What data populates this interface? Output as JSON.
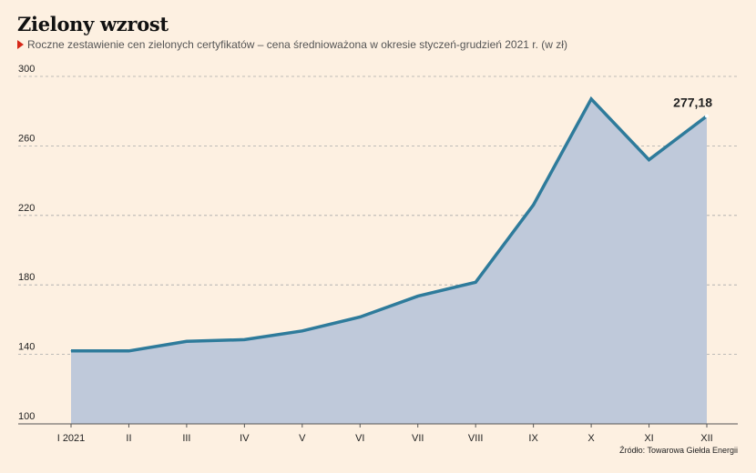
{
  "header": {
    "title": "Zielony wzrost",
    "subtitle": "Roczne zestawienie cen zielonych certyfikatów – cena średnioważona w okresie styczeń-grudzień 2021 r. (w zł)"
  },
  "source": "Źródło: Towarowa Giełda Energii",
  "colors": {
    "background": "#fdf0e1",
    "line": "#2e7b9b",
    "area": "#bfc9da",
    "grid": "#aaaaaa",
    "marker": "#d62718"
  },
  "chart_data": {
    "type": "area",
    "categories": [
      "I 2021",
      "II",
      "III",
      "IV",
      "V",
      "VI",
      "VII",
      "VIII",
      "IX",
      "X",
      "XI",
      "XII"
    ],
    "values": [
      142,
      142,
      147.5,
      148.5,
      153.5,
      161.5,
      173.5,
      181.5,
      226,
      287,
      252,
      277.18
    ],
    "ylim": [
      100,
      300
    ],
    "yticks": [
      100,
      140,
      180,
      220,
      260,
      300
    ],
    "grid": true,
    "annotations": [
      {
        "index": 11,
        "text": "277,18"
      }
    ]
  }
}
